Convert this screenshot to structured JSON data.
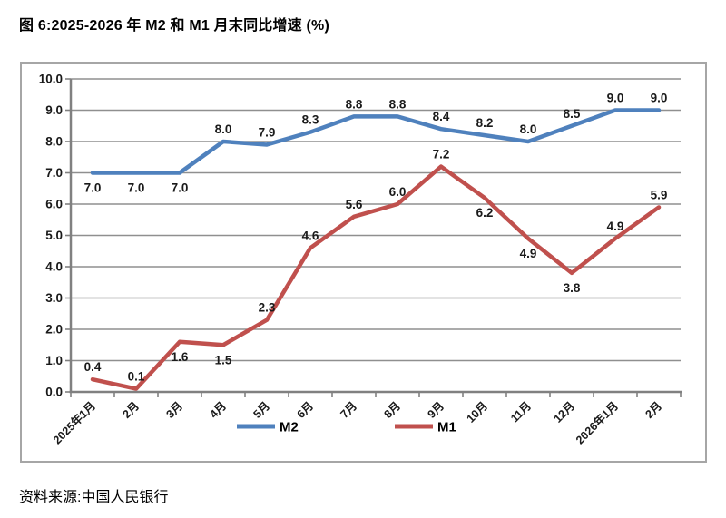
{
  "title": "图 6:2025-2026 年 M2 和 M1 月末同比增速 (%)",
  "source": "资料来源:中国人民银行",
  "chart_data": {
    "type": "line",
    "title": "图 6:2025-2026 年 M2 和 M1 月末同比增速 (%)",
    "categories": [
      "2025年1月",
      "2月",
      "3月",
      "4月",
      "5月",
      "6月",
      "7月",
      "8月",
      "9月",
      "10月",
      "11月",
      "12月",
      "2026年1月",
      "2月"
    ],
    "series": [
      {
        "name": "M2",
        "color": "#4F81BD",
        "values": [
          7.0,
          7.0,
          7.0,
          8.0,
          7.9,
          8.3,
          8.8,
          8.8,
          8.4,
          8.2,
          8.0,
          8.5,
          9.0,
          9.0
        ],
        "label_pos": [
          "below",
          "below",
          "below",
          "above",
          "above",
          "above",
          "above",
          "above",
          "above",
          "above",
          "above",
          "above",
          "above",
          "above"
        ]
      },
      {
        "name": "M1",
        "color": "#C0504D",
        "values": [
          0.4,
          0.1,
          1.6,
          1.5,
          2.3,
          4.6,
          5.6,
          6.0,
          7.2,
          6.2,
          4.9,
          3.8,
          4.9,
          5.9
        ],
        "label_pos": [
          "above",
          "above",
          "below",
          "below",
          "above",
          "above",
          "above",
          "above",
          "above",
          "below",
          "below",
          "below",
          "above",
          "above"
        ]
      }
    ],
    "xlabel": "",
    "ylabel": "",
    "ylim": [
      0,
      10
    ],
    "ytick_step": 1,
    "ytick_decimals": 1,
    "value_label_decimals": 1,
    "grid": true,
    "legend_position": "bottom",
    "colors": {
      "grid": "#8F8F8F",
      "axis": "#808080",
      "border": "#A6A6A6",
      "text": "#1A1A1A"
    }
  }
}
